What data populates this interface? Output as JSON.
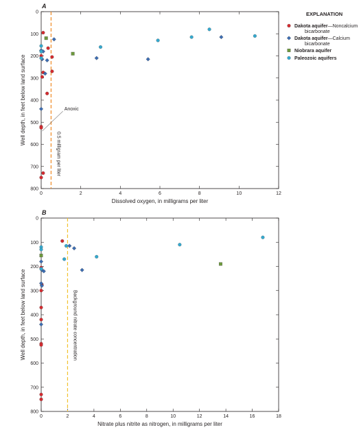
{
  "legend": {
    "title": "EXPLANATION",
    "entries": [
      {
        "series": "dakota_noncalcium",
        "bold": "Dakota aquifer",
        "rest": "—Noncalcium",
        "line2": "bicarbonate",
        "marker": "circle",
        "color": "#d42a2f"
      },
      {
        "series": "dakota_calcium",
        "bold": "Dakota aquifer",
        "rest": "—Calcium",
        "line2": "bicarbonate",
        "marker": "diamond",
        "color": "#3c6db3"
      },
      {
        "series": "niobrara",
        "bold": "Niobrara aquifer",
        "rest": "",
        "line2": "",
        "marker": "square",
        "color": "#6d9a3c"
      },
      {
        "series": "paleozoic",
        "bold": "Paleozoic aquifers",
        "rest": "",
        "line2": "",
        "marker": "circle",
        "color": "#34a9cf"
      }
    ]
  },
  "chart_data": [
    {
      "type": "scatter",
      "panel": "A",
      "xlabel": "Dissolved oxygen, in milligrams per liter",
      "ylabel": "Well depth, in feet below land surface",
      "xlim": [
        0,
        12
      ],
      "ylim": [
        800,
        0
      ],
      "xticks": [
        0,
        2,
        4,
        6,
        8,
        10,
        12
      ],
      "yticks": [
        0,
        100,
        200,
        300,
        400,
        500,
        600,
        700,
        800
      ],
      "reference_line": {
        "x": 0.5,
        "label": "0.5 milligram per liter",
        "color": "#f08a24"
      },
      "annotation": {
        "text": "Anoxic"
      },
      "series": [
        {
          "id": "dakota_noncalcium",
          "points": [
            [
              0.1,
              95
            ],
            [
              0.35,
              165
            ],
            [
              0.55,
              205
            ],
            [
              0.55,
              270
            ],
            [
              0.0,
              200
            ],
            [
              0.05,
              295
            ],
            [
              0.1,
              275
            ],
            [
              0.3,
              370
            ],
            [
              0.0,
              520
            ],
            [
              0.0,
              525
            ],
            [
              0.1,
              730
            ],
            [
              0.0,
              750
            ]
          ]
        },
        {
          "id": "dakota_calcium",
          "points": [
            [
              0.65,
              125
            ],
            [
              0.0,
              175
            ],
            [
              0.1,
              180
            ],
            [
              0.3,
              220
            ],
            [
              0.05,
              215
            ],
            [
              0.2,
              280
            ],
            [
              0.0,
              440
            ],
            [
              2.8,
              210
            ],
            [
              5.4,
              215
            ],
            [
              9.1,
              115
            ]
          ]
        },
        {
          "id": "niobrara",
          "points": [
            [
              0.25,
              120
            ],
            [
              1.6,
              190
            ]
          ]
        },
        {
          "id": "paleozoic",
          "points": [
            [
              0.0,
              155
            ],
            [
              0.0,
              180
            ],
            [
              0.0,
              210
            ],
            [
              3.0,
              160
            ],
            [
              5.9,
              130
            ],
            [
              7.6,
              115
            ],
            [
              8.5,
              80
            ],
            [
              10.8,
              110
            ]
          ]
        }
      ]
    },
    {
      "type": "scatter",
      "panel": "B",
      "xlabel": "Nitrate plus nitrite as nitrogen, in milligrams per liter",
      "ylabel": "Well depth, in feet below land surface",
      "xlim": [
        0,
        18
      ],
      "ylim": [
        800,
        0
      ],
      "xticks": [
        0,
        2,
        4,
        6,
        8,
        10,
        12,
        14,
        16,
        18
      ],
      "yticks": [
        0,
        100,
        200,
        300,
        400,
        500,
        600,
        700,
        800
      ],
      "reference_line": {
        "x": 2,
        "label": "Background nitrate concentration",
        "color": "#f2c12e"
      },
      "series": [
        {
          "id": "dakota_noncalcium",
          "points": [
            [
              1.6,
              95
            ],
            [
              0.0,
              205
            ],
            [
              0.05,
              275
            ],
            [
              0.0,
              300
            ],
            [
              0.0,
              370
            ],
            [
              0.0,
              420
            ],
            [
              0.0,
              520
            ],
            [
              0.0,
              525
            ],
            [
              0.0,
              730
            ],
            [
              0.0,
              750
            ]
          ]
        },
        {
          "id": "dakota_calcium",
          "points": [
            [
              2.15,
              115
            ],
            [
              2.5,
              125
            ],
            [
              0.0,
              180
            ],
            [
              0.05,
              215
            ],
            [
              0.2,
              220
            ],
            [
              3.1,
              215
            ],
            [
              0.0,
              270
            ],
            [
              0.05,
              280
            ],
            [
              0.0,
              440
            ]
          ]
        },
        {
          "id": "niobrara",
          "points": [
            [
              0.0,
              155
            ],
            [
              13.6,
              190
            ]
          ]
        },
        {
          "id": "paleozoic",
          "points": [
            [
              1.9,
              115
            ],
            [
              1.75,
              170
            ],
            [
              0.0,
              120
            ],
            [
              0.0,
              130
            ],
            [
              4.2,
              160
            ],
            [
              10.5,
              110
            ],
            [
              16.8,
              80
            ],
            [
              0.0,
              210
            ]
          ]
        }
      ]
    }
  ]
}
